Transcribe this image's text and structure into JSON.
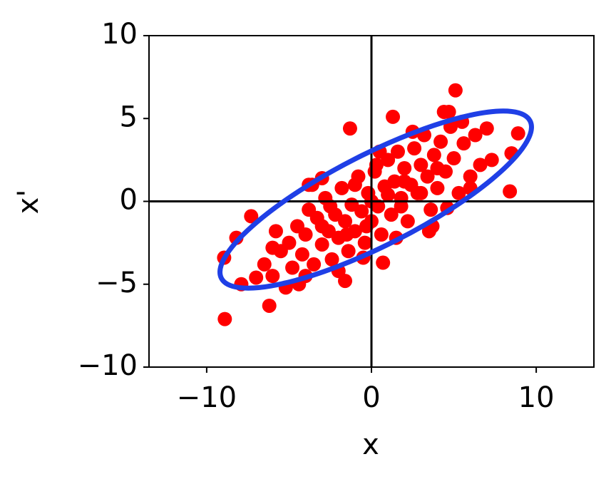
{
  "chart_data": {
    "type": "scatter",
    "x_label": "x",
    "y_label": "x'",
    "xlim": [
      -13.5,
      13.5
    ],
    "ylim": [
      -10,
      10
    ],
    "xticks": [
      {
        "value": -10,
        "label": "−10"
      },
      0,
      10
    ],
    "yticks": [
      {
        "value": -10,
        "label": "−10"
      },
      {
        "value": -5,
        "label": "−5"
      },
      0,
      5,
      10
    ],
    "zero_lines": true,
    "series": [
      {
        "color": "#ff0000",
        "x": [
          -8.94,
          -8.9,
          -6.2,
          -8.2,
          -7.3,
          -1.3,
          1.3,
          5.1,
          8.9,
          8.4,
          8.5,
          7.3,
          4.7,
          7.0,
          -7.9,
          -5.2,
          -1.6,
          0.7,
          3.7,
          4.6,
          6.0,
          -3.8,
          -3.0,
          -6.5,
          -6.0,
          -5.5,
          -5.0,
          -4.8,
          -4.5,
          -4.2,
          -4.0,
          -3.8,
          -3.5,
          -3.3,
          -3.0,
          -2.8,
          -2.6,
          -2.4,
          -2.2,
          -2.0,
          -1.8,
          -1.6,
          -1.4,
          -1.2,
          -1.0,
          -0.8,
          -0.6,
          -0.4,
          -0.2,
          0,
          0.2,
          0.4,
          0.6,
          0.8,
          1.0,
          1.2,
          1.4,
          1.6,
          1.8,
          2.0,
          2.2,
          2.4,
          2.6,
          2.8,
          3.0,
          3.2,
          3.4,
          3.6,
          3.8,
          4.0,
          4.2,
          4.5,
          4.8,
          5.0,
          5.3,
          5.6,
          6.0,
          6.3,
          6.6,
          -7.0,
          -5.8,
          -4.4,
          -3.6,
          -2.0,
          -0.5,
          0.5,
          1.5,
          2.5,
          3.5,
          4.4,
          -1.0,
          -2.5,
          0.0,
          1.0,
          -3.0,
          2.0,
          -1.5,
          3.0,
          5.5,
          -6.0,
          0.3,
          -0.3,
          1.8,
          -4.0,
          4.0
        ],
        "values": [
          -3.4,
          -7.1,
          -6.3,
          -2.2,
          -0.9,
          4.4,
          5.1,
          6.7,
          4.1,
          0.6,
          2.9,
          2.5,
          5.4,
          4.4,
          -5.0,
          -5.2,
          -4.8,
          -3.7,
          -1.5,
          -0.4,
          0.8,
          1.0,
          1.4,
          -3.8,
          -4.5,
          -3.0,
          -2.5,
          -4.0,
          -1.5,
          -3.2,
          -2.0,
          -0.5,
          -3.8,
          -1.0,
          -2.6,
          0.2,
          -1.8,
          -3.5,
          -0.8,
          -2.2,
          0.8,
          -1.2,
          -3.0,
          -0.2,
          -1.8,
          1.5,
          -0.6,
          -2.5,
          0.5,
          -1.2,
          1.8,
          -0.3,
          -2.0,
          0.9,
          2.5,
          -0.8,
          1.2,
          3.0,
          0.2,
          2.0,
          -1.2,
          1.0,
          3.2,
          0.5,
          2.2,
          4.0,
          1.5,
          -0.5,
          2.8,
          0.8,
          3.6,
          1.8,
          4.5,
          2.6,
          0.5,
          3.5,
          1.5,
          4.0,
          2.2,
          -4.6,
          -1.8,
          -5.0,
          1.0,
          -4.2,
          -3.4,
          3.0,
          -2.2,
          4.2,
          -1.8,
          5.4,
          1.0,
          -0.3,
          0.0,
          0.4,
          -1.5,
          1.2,
          -2.0,
          0.5,
          4.8,
          -2.8,
          2.2,
          -1.5,
          -0.3,
          -4.5,
          2.0
        ]
      }
    ]
  }
}
